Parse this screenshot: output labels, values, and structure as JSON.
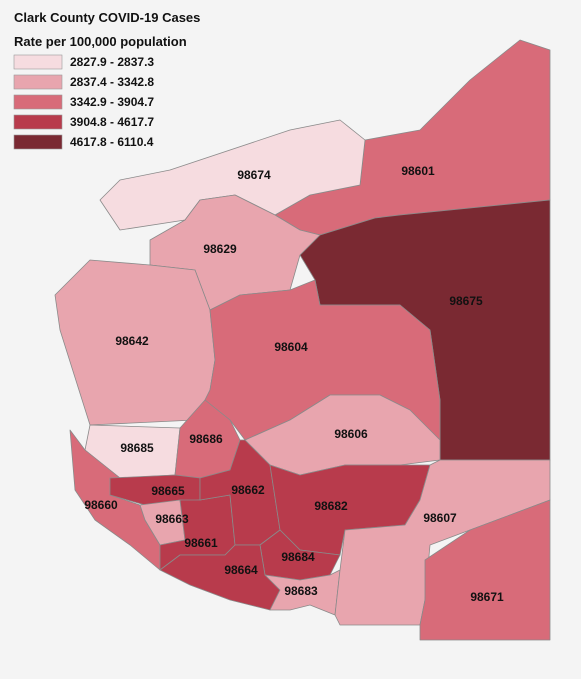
{
  "title": "Clark County COVID-19 Cases",
  "subtitle": "Rate per 100,000 population",
  "legend": [
    {
      "label": "2827.9 - 2837.3",
      "color": "#f6dce0"
    },
    {
      "label": "2837.4 - 3342.8",
      "color": "#e8a5ae"
    },
    {
      "label": "3342.9 - 3904.7",
      "color": "#d86b79"
    },
    {
      "label": "3904.8 - 4617.7",
      "color": "#b83b4c"
    },
    {
      "label": "4617.8 - 6110.4",
      "color": "#7a2932"
    }
  ],
  "regions": [
    {
      "zip": "98601",
      "color": "#d86b79"
    },
    {
      "zip": "98675",
      "color": "#7a2932"
    },
    {
      "zip": "98674",
      "color": "#f6dce0"
    },
    {
      "zip": "98629",
      "color": "#e8a5ae"
    },
    {
      "zip": "98642",
      "color": "#e8a5ae"
    },
    {
      "zip": "98604",
      "color": "#d86b79"
    },
    {
      "zip": "98685",
      "color": "#f6dce0"
    },
    {
      "zip": "98686",
      "color": "#d86b79"
    },
    {
      "zip": "98606",
      "color": "#e8a5ae"
    },
    {
      "zip": "98660",
      "color": "#d86b79"
    },
    {
      "zip": "98665",
      "color": "#b83b4c"
    },
    {
      "zip": "98663",
      "color": "#e8a5ae"
    },
    {
      "zip": "98661",
      "color": "#b83b4c"
    },
    {
      "zip": "98662",
      "color": "#b83b4c"
    },
    {
      "zip": "98682",
      "color": "#b83b4c"
    },
    {
      "zip": "98684",
      "color": "#b83b4c"
    },
    {
      "zip": "98664",
      "color": "#b83b4c"
    },
    {
      "zip": "98683",
      "color": "#e8a5ae"
    },
    {
      "zip": "98607",
      "color": "#e8a5ae"
    },
    {
      "zip": "98671",
      "color": "#d86b79"
    }
  ]
}
